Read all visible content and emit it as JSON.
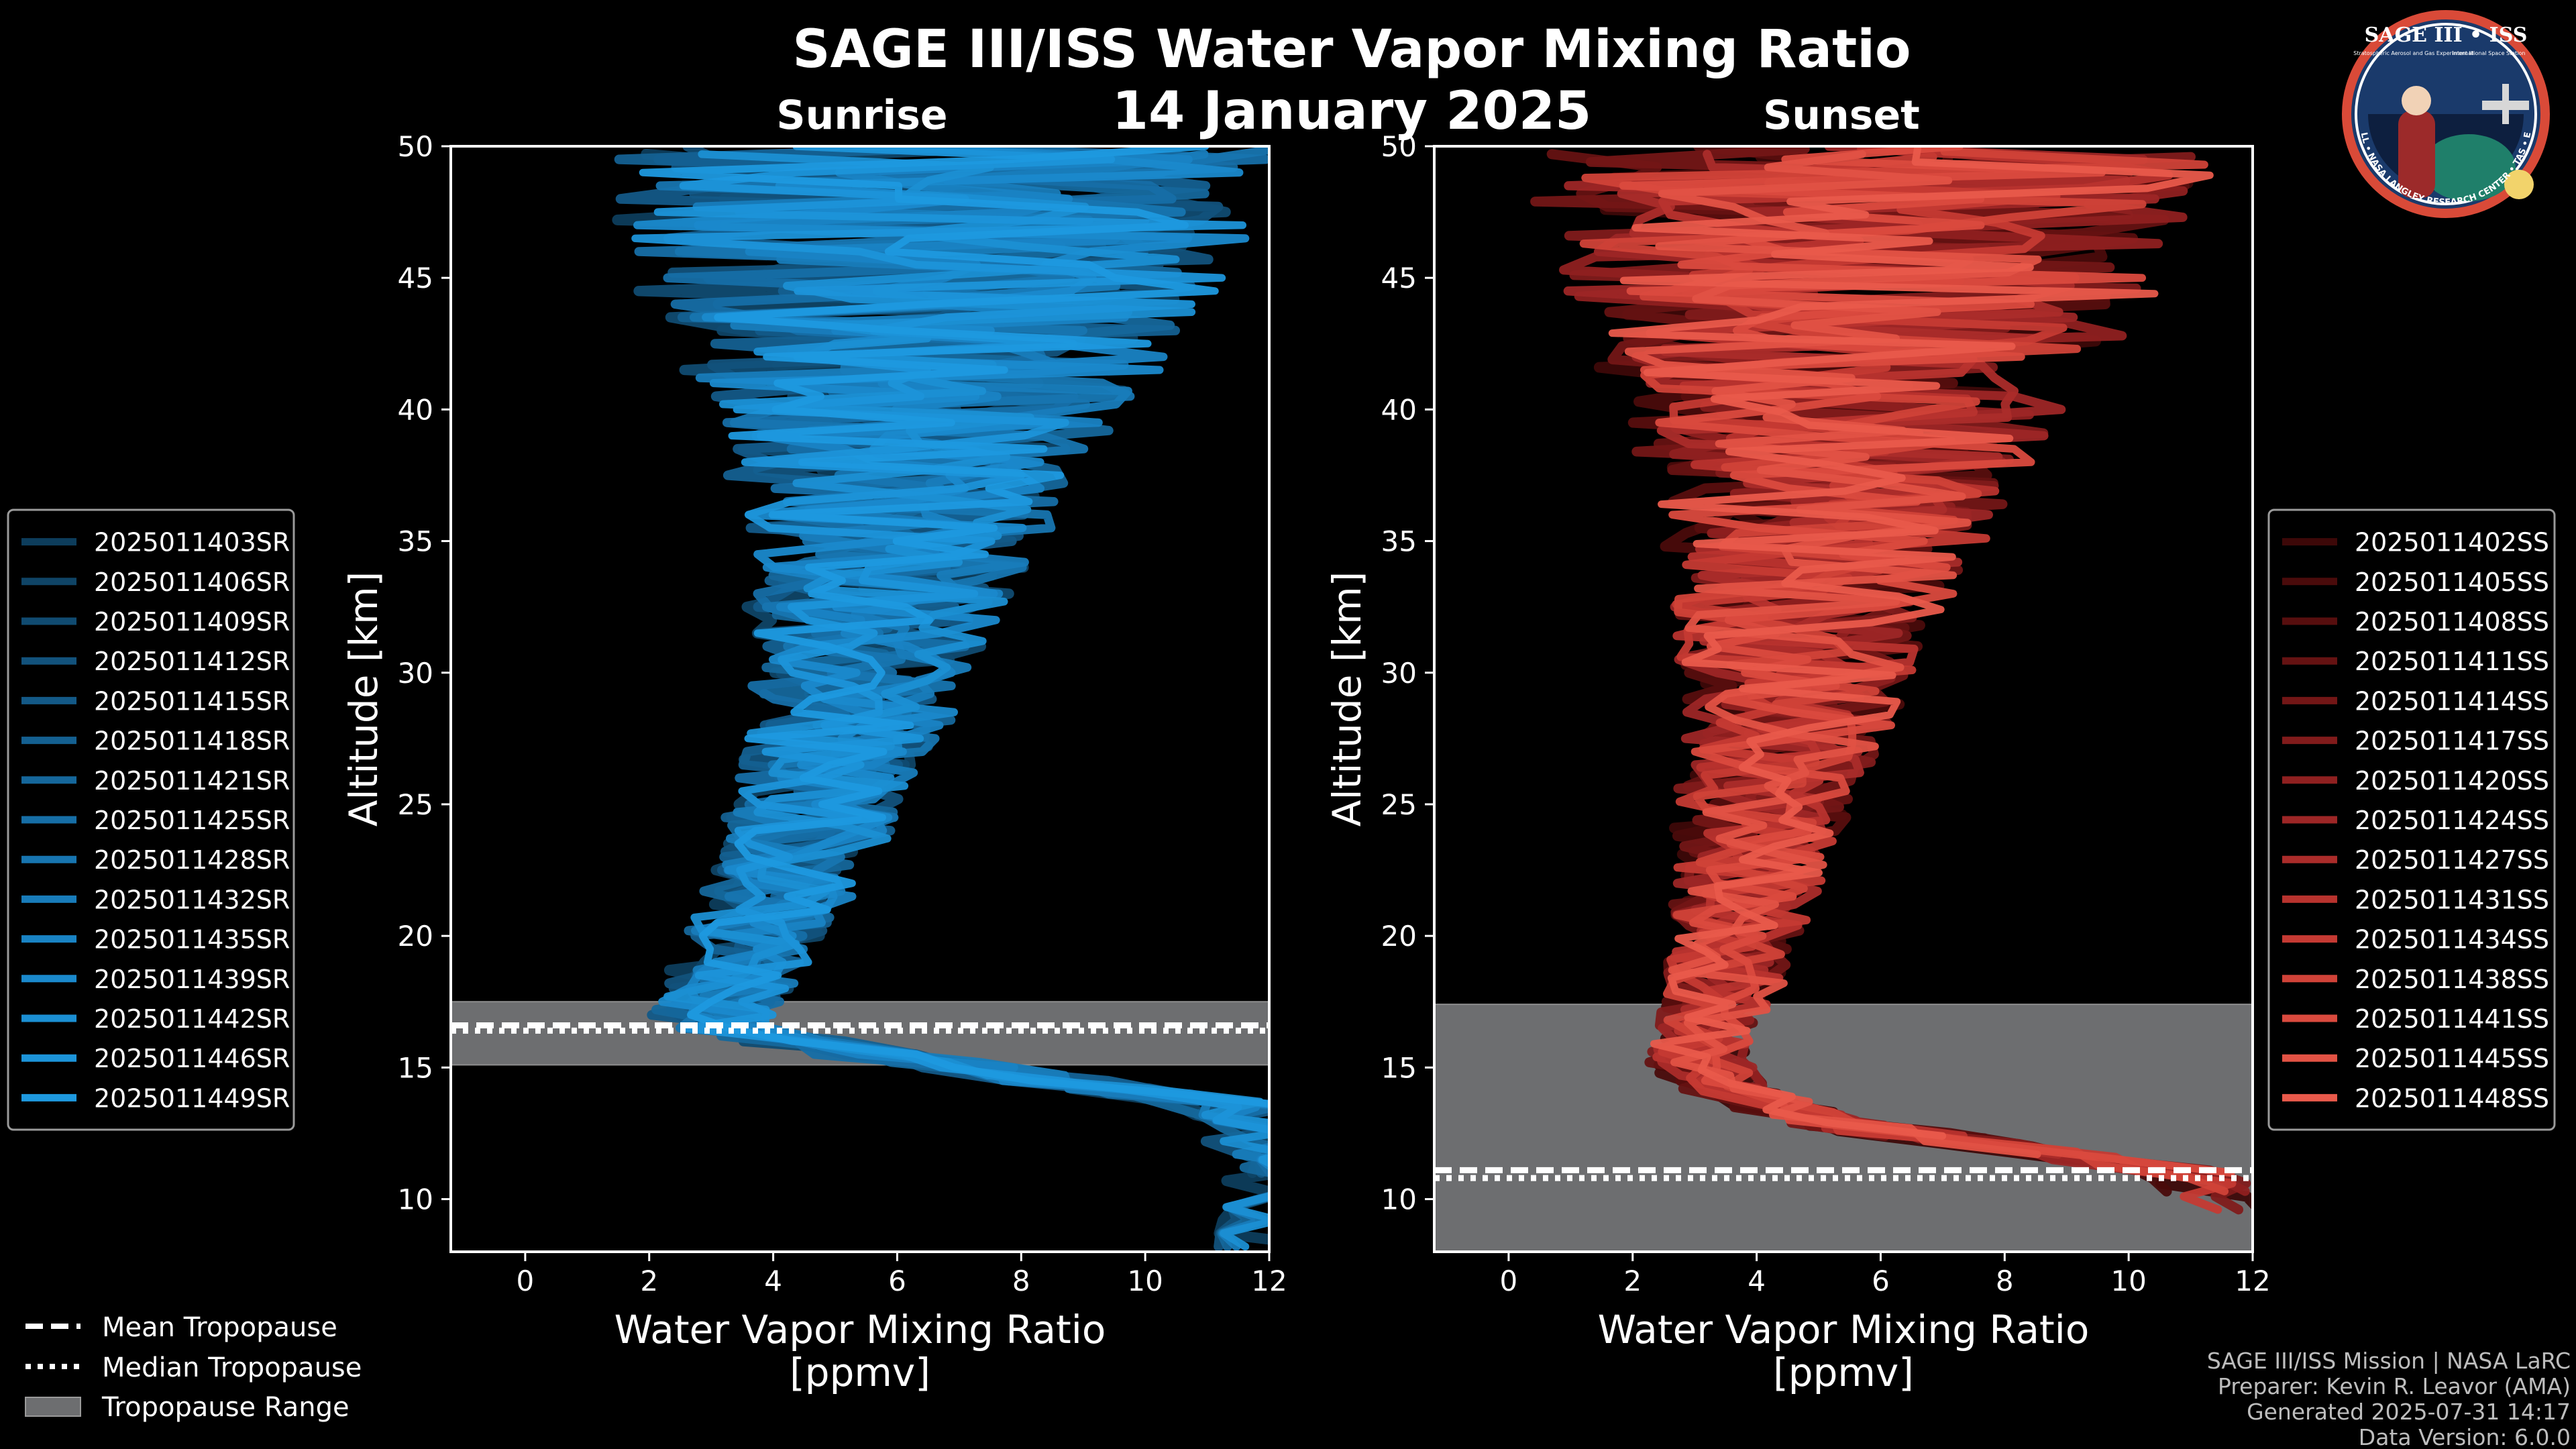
{
  "title": "SAGE III/ISS Water Vapor Mixing Ratio",
  "date": "14 January 2025",
  "logo": {
    "text_top": "SAGE III • ISS",
    "text_sub_left": "Stratospheric Aerosol and Gas Experiment III",
    "text_sub_right": "International Space Station",
    "text_ring": "BALL • NASA LANGLEY RESEARCH CENTER • TAS • ESA"
  },
  "footer": {
    "line1": "SAGE III/ISS Mission | NASA LaRC",
    "line2": "Preparer: Kevin R. Leavor (AMA)",
    "line3": "Generated 2025-07-31 14:17",
    "line4": "Data Version: 6.0.0"
  },
  "bottom_legend": {
    "mean": "Mean Tropopause",
    "median": "Median Tropopause",
    "range": "Tropopause Range"
  },
  "colors": {
    "background": "#000000",
    "sunrise": "#1a8fd6",
    "sunset": "#e8584a",
    "tropopause_range": "#6d6e70"
  },
  "chart_data": [
    {
      "type": "line",
      "title": "Sunrise",
      "xlabel": "Water Vapor Mixing Ratio",
      "xlabel2": "[ppmv]",
      "ylabel": "Altitude [km]",
      "xlim": [
        -1.2,
        12
      ],
      "ylim": [
        8,
        50
      ],
      "xticks": [
        0,
        2,
        4,
        6,
        8,
        10,
        12
      ],
      "yticks": [
        10,
        15,
        20,
        25,
        30,
        35,
        40,
        45,
        50
      ],
      "tropopause": {
        "mean": 16.6,
        "median": 16.4,
        "range": [
          15.1,
          17.5
        ]
      },
      "profile": [
        {
          "alt": 8.2,
          "value": 12.0
        },
        {
          "alt": 10.6,
          "value": 12.0
        },
        {
          "alt": 11.4,
          "value": 12.0
        },
        {
          "alt": 13.5,
          "value": 11.5
        },
        {
          "alt": 14.5,
          "value": 8.5
        },
        {
          "alt": 15.5,
          "value": 5.5
        },
        {
          "alt": 16.5,
          "value": 3.3
        },
        {
          "alt": 17.0,
          "value": 2.9
        },
        {
          "alt": 18.0,
          "value": 3.2
        },
        {
          "alt": 20.0,
          "value": 3.6
        },
        {
          "alt": 22.0,
          "value": 4.1
        },
        {
          "alt": 25.0,
          "value": 4.6
        },
        {
          "alt": 28.0,
          "value": 5.1
        },
        {
          "alt": 31.0,
          "value": 5.4
        },
        {
          "alt": 34.0,
          "value": 5.7
        },
        {
          "alt": 37.0,
          "value": 5.9
        },
        {
          "alt": 40.0,
          "value": 6.1
        },
        {
          "alt": 43.0,
          "value": 6.2
        },
        {
          "alt": 46.0,
          "value": 6.3
        },
        {
          "alt": 50.0,
          "value": 6.4
        }
      ],
      "spread": [
        {
          "alt": 16.0,
          "value": 1.2
        },
        {
          "alt": 20.0,
          "value": 1.4
        },
        {
          "alt": 25.0,
          "value": 1.8
        },
        {
          "alt": 30.0,
          "value": 2.2
        },
        {
          "alt": 35.0,
          "value": 3.0
        },
        {
          "alt": 40.0,
          "value": 4.2
        },
        {
          "alt": 45.0,
          "value": 6.0
        },
        {
          "alt": 50.0,
          "value": 7.0
        }
      ],
      "series": [
        {
          "name": "2025011403SR",
          "color": "#0d3d5c"
        },
        {
          "name": "2025011406SR",
          "color": "#0f4466"
        },
        {
          "name": "2025011409SR",
          "color": "#104b71"
        },
        {
          "name": "2025011412SR",
          "color": "#12527c"
        },
        {
          "name": "2025011415SR",
          "color": "#135987"
        },
        {
          "name": "2025011418SR",
          "color": "#146091"
        },
        {
          "name": "2025011421SR",
          "color": "#15679b"
        },
        {
          "name": "2025011425SR",
          "color": "#166ea6"
        },
        {
          "name": "2025011428SR",
          "color": "#1775b0"
        },
        {
          "name": "2025011432SR",
          "color": "#187cba"
        },
        {
          "name": "2025011435SR",
          "color": "#1983c4"
        },
        {
          "name": "2025011439SR",
          "color": "#1a89cc"
        },
        {
          "name": "2025011442SR",
          "color": "#1b8fd3"
        },
        {
          "name": "2025011446SR",
          "color": "#1c94d9"
        },
        {
          "name": "2025011449SR",
          "color": "#1e99df"
        }
      ]
    },
    {
      "type": "line",
      "title": "Sunset",
      "xlabel": "Water Vapor Mixing Ratio",
      "xlabel2": "[ppmv]",
      "ylabel": "Altitude [km]",
      "xlim": [
        -1.2,
        12
      ],
      "ylim": [
        8,
        50
      ],
      "xticks": [
        0,
        2,
        4,
        6,
        8,
        10,
        12
      ],
      "yticks": [
        10,
        15,
        20,
        25,
        30,
        35,
        40,
        45,
        50
      ],
      "tropopause": {
        "mean": 11.1,
        "median": 10.8,
        "range": [
          8.0,
          17.4
        ]
      },
      "profile": [
        {
          "alt": 9.5,
          "value": 12.0
        },
        {
          "alt": 11.0,
          "value": 11.0
        },
        {
          "alt": 12.0,
          "value": 8.0
        },
        {
          "alt": 13.0,
          "value": 5.0
        },
        {
          "alt": 14.5,
          "value": 3.4
        },
        {
          "alt": 15.5,
          "value": 3.1
        },
        {
          "alt": 17.0,
          "value": 3.4
        },
        {
          "alt": 19.0,
          "value": 3.7
        },
        {
          "alt": 22.0,
          "value": 4.0
        },
        {
          "alt": 25.0,
          "value": 4.3
        },
        {
          "alt": 28.0,
          "value": 4.7
        },
        {
          "alt": 31.0,
          "value": 5.0
        },
        {
          "alt": 34.0,
          "value": 5.3
        },
        {
          "alt": 37.0,
          "value": 5.6
        },
        {
          "alt": 40.0,
          "value": 5.9
        },
        {
          "alt": 43.0,
          "value": 6.1
        },
        {
          "alt": 46.0,
          "value": 6.3
        },
        {
          "alt": 50.0,
          "value": 6.5
        }
      ],
      "spread": [
        {
          "alt": 15.0,
          "value": 1.0
        },
        {
          "alt": 20.0,
          "value": 1.3
        },
        {
          "alt": 25.0,
          "value": 1.8
        },
        {
          "alt": 30.0,
          "value": 2.4
        },
        {
          "alt": 35.0,
          "value": 3.2
        },
        {
          "alt": 40.0,
          "value": 4.5
        },
        {
          "alt": 45.0,
          "value": 6.2
        },
        {
          "alt": 50.0,
          "value": 7.0
        }
      ],
      "series": [
        {
          "name": "2025011402SS",
          "color": "#3d0808"
        },
        {
          "name": "2025011405SS",
          "color": "#4a0b0b"
        },
        {
          "name": "2025011408SS",
          "color": "#570e0e"
        },
        {
          "name": "2025011411SS",
          "color": "#651212"
        },
        {
          "name": "2025011414SS",
          "color": "#731616"
        },
        {
          "name": "2025011417SS",
          "color": "#811b1b"
        },
        {
          "name": "2025011420SS",
          "color": "#8f2020"
        },
        {
          "name": "2025011424SS",
          "color": "#9d2626"
        },
        {
          "name": "2025011427SS",
          "color": "#ab2c2a"
        },
        {
          "name": "2025011431SS",
          "color": "#b8332e"
        },
        {
          "name": "2025011434SS",
          "color": "#c53a33"
        },
        {
          "name": "2025011438SS",
          "color": "#d04238"
        },
        {
          "name": "2025011441SS",
          "color": "#da4a3e"
        },
        {
          "name": "2025011445SS",
          "color": "#e25244"
        },
        {
          "name": "2025011448SS",
          "color": "#e95a4b"
        }
      ]
    }
  ]
}
